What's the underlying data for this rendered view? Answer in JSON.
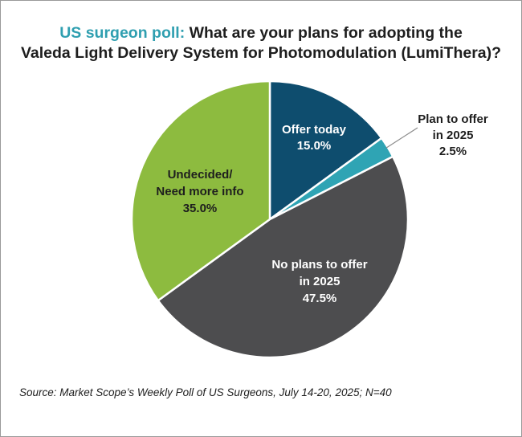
{
  "chart_data": {
    "type": "pie",
    "title_prefix": "US surgeon poll:",
    "title_line1": "What are your plans for adopting the",
    "title_line2": "Valeda Light Delivery System for Photomodulation  (LumiThera)?",
    "slices": [
      {
        "label_lines": [
          "Offer today"
        ],
        "value_text": "15.0%",
        "value": 15.0,
        "color": "#0e4d6e"
      },
      {
        "label_lines": [
          "Plan to offer",
          "in 2025"
        ],
        "value_text": "2.5%",
        "value": 2.5,
        "color": "#2fa4b4"
      },
      {
        "label_lines": [
          "No plans to offer",
          "in 2025"
        ],
        "value_text": "47.5%",
        "value": 47.5,
        "color": "#4d4d4f"
      },
      {
        "label_lines": [
          "Undecided/",
          "Need more info"
        ],
        "value_text": "35.0%",
        "value": 35.0,
        "color": "#8dbb3f"
      }
    ],
    "start": "12 o'clock",
    "direction": "clockwise"
  },
  "source": "Source: Market Scope’s Weekly Poll of US Surgeons, July 14-20, 2025; N=40"
}
